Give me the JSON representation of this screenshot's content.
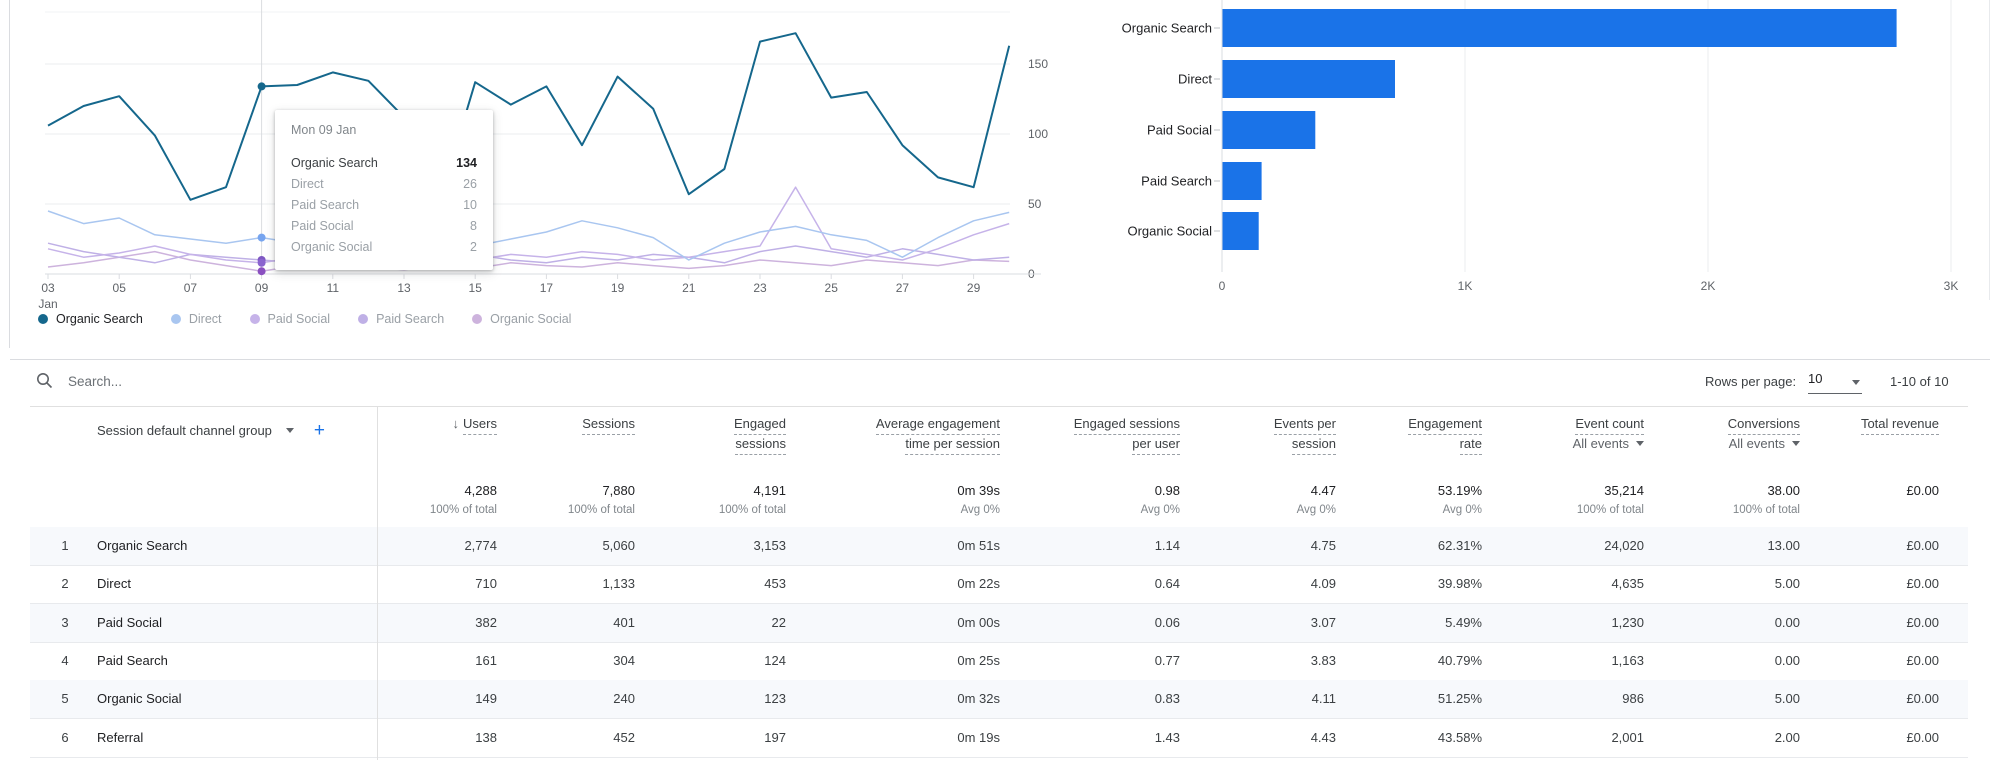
{
  "colors": {
    "bar_blue": "#1a73e8",
    "organic_search_line": "#15678c",
    "direct_line": "#a9c6f0",
    "paid_social_line": "#c6b3e9",
    "paid_search_line": "#bfb0e6",
    "organic_social_line": "#cdb3dd",
    "direct_dot": "#76a4ef",
    "paid_search_dot": "#7e57c2",
    "paid_social_dot": "#8a63cf",
    "organic_social_dot": "#8a4fc0",
    "grid": "#ebedef",
    "axis": "#dadce0",
    "axis_text": "#5f6368"
  },
  "chart_data": [
    {
      "type": "line",
      "title": "",
      "xlabel": "Jan",
      "ylabel": "",
      "ylim": [
        0,
        150
      ],
      "y_ticks": [
        "150",
        "100",
        "50",
        "0"
      ],
      "y_tick_values": [
        150,
        100,
        50,
        0
      ],
      "x_tick_labels": [
        "03",
        "05",
        "07",
        "09",
        "11",
        "13",
        "15",
        "17",
        "19",
        "21",
        "23",
        "25",
        "27",
        "29"
      ],
      "x_month_label": "Jan",
      "start_day": 3,
      "series": [
        {
          "name": "Organic Search",
          "values": [
            106,
            120,
            127,
            99,
            53,
            62,
            134,
            135,
            144,
            138,
            112,
            52,
            137,
            121,
            134,
            92,
            141,
            118,
            57,
            75,
            166,
            172,
            126,
            130,
            92,
            69,
            62,
            163
          ]
        },
        {
          "name": "Direct",
          "values": [
            45,
            36,
            40,
            28,
            25,
            22,
            26,
            22,
            19,
            24,
            21,
            16,
            20,
            25,
            30,
            38,
            33,
            26,
            10,
            22,
            30,
            34,
            28,
            24,
            12,
            26,
            38,
            44
          ]
        },
        {
          "name": "Paid Social",
          "values": [
            18,
            12,
            15,
            20,
            14,
            10,
            8,
            12,
            10,
            14,
            12,
            8,
            10,
            14,
            12,
            16,
            14,
            10,
            12,
            16,
            20,
            62,
            18,
            14,
            10,
            18,
            28,
            36
          ]
        },
        {
          "name": "Paid Search",
          "values": [
            22,
            16,
            12,
            8,
            14,
            12,
            10,
            8,
            12,
            10,
            8,
            12,
            14,
            10,
            8,
            12,
            10,
            14,
            12,
            8,
            16,
            20,
            16,
            12,
            18,
            14,
            10,
            12
          ]
        },
        {
          "name": "Organic Social",
          "values": [
            5,
            8,
            12,
            16,
            10,
            6,
            2,
            6,
            8,
            5,
            3,
            6,
            4,
            8,
            6,
            5,
            8,
            6,
            4,
            6,
            10,
            8,
            6,
            10,
            8,
            6,
            10,
            9
          ]
        }
      ],
      "legend": [
        {
          "label": "Organic Search",
          "active": true
        },
        {
          "label": "Direct",
          "active": false
        },
        {
          "label": "Paid Social",
          "active": false
        },
        {
          "label": "Paid Search",
          "active": false
        },
        {
          "label": "Organic Social",
          "active": false
        }
      ],
      "hover_day": 9,
      "tooltip": {
        "title": "Mon 09 Jan",
        "rows": [
          {
            "name": "Organic Search",
            "value": "134"
          },
          {
            "name": "Direct",
            "value": "26"
          },
          {
            "name": "Paid Search",
            "value": "10"
          },
          {
            "name": "Paid Social",
            "value": "8"
          },
          {
            "name": "Organic Social",
            "value": "2"
          }
        ]
      }
    },
    {
      "type": "bar",
      "orientation": "horizontal",
      "categories": [
        "Organic Search",
        "Direct",
        "Paid Social",
        "Paid Search",
        "Organic Social"
      ],
      "values": [
        2774,
        710,
        382,
        161,
        149
      ],
      "x_ticks": [
        "0",
        "1K",
        "2K",
        "3K"
      ],
      "x_tick_values": [
        0,
        1000,
        2000,
        3000
      ],
      "xlim": [
        0,
        3000
      ],
      "title": "",
      "xlabel": "",
      "ylabel": ""
    }
  ],
  "toolbar": {
    "search_placeholder": "Search...",
    "rows_per_page_label": "Rows per page:",
    "rows_per_page_value": "10",
    "range_label": "1-10 of 10"
  },
  "table": {
    "dimension_header": "Session default channel group",
    "add_dimension_label": "+",
    "columns": [
      {
        "id": "users",
        "label_lines": [
          "Users"
        ],
        "sorted": true,
        "total": "4,288",
        "total_sub": "100% of total"
      },
      {
        "id": "sessions",
        "label_lines": [
          "Sessions"
        ],
        "total": "7,880",
        "total_sub": "100% of total"
      },
      {
        "id": "engaged_sessions",
        "label_lines": [
          "Engaged",
          "sessions"
        ],
        "total": "4,191",
        "total_sub": "100% of total"
      },
      {
        "id": "avg_engagement_time",
        "label_lines": [
          "Average engagement",
          "time per session"
        ],
        "total": "0m 39s",
        "total_sub": "Avg 0%"
      },
      {
        "id": "engaged_sessions_per_user",
        "label_lines": [
          "Engaged sessions",
          "per user"
        ],
        "total": "0.98",
        "total_sub": "Avg 0%"
      },
      {
        "id": "events_per_session",
        "label_lines": [
          "Events per",
          "session"
        ],
        "total": "4.47",
        "total_sub": "Avg 0%"
      },
      {
        "id": "engagement_rate",
        "label_lines": [
          "Engagement",
          "rate"
        ],
        "total": "53.19%",
        "total_sub": "Avg 0%"
      },
      {
        "id": "event_count",
        "label_lines": [
          "Event count"
        ],
        "sub": "All events",
        "total": "35,214",
        "total_sub": "100% of total"
      },
      {
        "id": "conversions",
        "label_lines": [
          "Conversions"
        ],
        "sub": "All events",
        "total": "38.00",
        "total_sub": "100% of total"
      },
      {
        "id": "total_revenue",
        "label_lines": [
          "Total revenue"
        ],
        "total": "£0.00",
        "total_sub": ""
      }
    ],
    "rows": [
      {
        "num": "1",
        "channel": "Organic Search",
        "values": [
          "2,774",
          "5,060",
          "3,153",
          "0m 51s",
          "1.14",
          "4.75",
          "62.31%",
          "24,020",
          "13.00",
          "£0.00"
        ]
      },
      {
        "num": "2",
        "channel": "Direct",
        "values": [
          "710",
          "1,133",
          "453",
          "0m 22s",
          "0.64",
          "4.09",
          "39.98%",
          "4,635",
          "5.00",
          "£0.00"
        ]
      },
      {
        "num": "3",
        "channel": "Paid Social",
        "values": [
          "382",
          "401",
          "22",
          "0m 00s",
          "0.06",
          "3.07",
          "5.49%",
          "1,230",
          "0.00",
          "£0.00"
        ]
      },
      {
        "num": "4",
        "channel": "Paid Search",
        "values": [
          "161",
          "304",
          "124",
          "0m 25s",
          "0.77",
          "3.83",
          "40.79%",
          "1,163",
          "0.00",
          "£0.00"
        ]
      },
      {
        "num": "5",
        "channel": "Organic Social",
        "values": [
          "149",
          "240",
          "123",
          "0m 32s",
          "0.83",
          "4.11",
          "51.25%",
          "986",
          "5.00",
          "£0.00"
        ]
      },
      {
        "num": "6",
        "channel": "Referral",
        "values": [
          "138",
          "452",
          "197",
          "0m 19s",
          "1.43",
          "4.43",
          "43.58%",
          "2,001",
          "2.00",
          "£0.00"
        ]
      }
    ]
  }
}
